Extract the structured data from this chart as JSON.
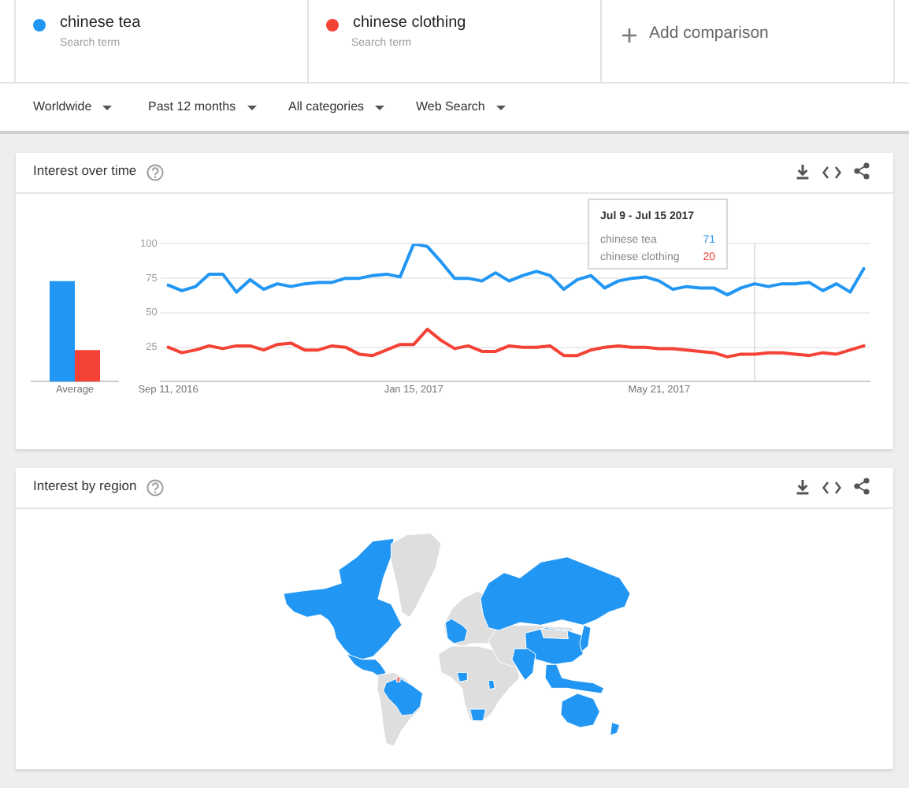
{
  "chart_data": [
    {
      "type": "other",
      "annotations": [
        "Search term",
        "Search term",
        "Add comparison",
        "Worldwide",
        "Past 12 months",
        "All categories",
        "Web Search"
      ]
    },
    {
      "type": "bar",
      "title": "Interest over time",
      "categories": [
        "Average"
      ],
      "series": [
        {
          "color": "#2196f3",
          "values": [
            73
          ]
        },
        {
          "color": "#f44336",
          "values": [
            23
          ]
        }
      ],
      "ylim": [
        0,
        100
      ],
      "tick_labels": "x"
    },
    {
      "type": "line",
      "x": [
        "2016-09-11",
        "2016-09-18",
        "2016-09-25",
        "2016-10-02",
        "2016-10-09",
        "2016-10-16",
        "2016-10-23",
        "2016-10-30",
        "2016-11-06",
        "2016-11-13",
        "2016-11-20",
        "2016-11-27",
        "2016-12-04",
        "2016-12-11",
        "2016-12-18",
        "2016-12-25",
        "2017-01-01",
        "2017-01-08",
        "2017-01-15",
        "2017-01-22",
        "2017-01-29",
        "2017-02-05",
        "2017-02-12",
        "2017-02-19",
        "2017-02-26",
        "2017-03-05",
        "2017-03-12",
        "2017-03-19",
        "2017-03-26",
        "2017-04-02",
        "2017-04-09",
        "2017-04-16",
        "2017-04-23",
        "2017-04-30",
        "2017-05-07",
        "2017-05-14",
        "2017-05-21",
        "2017-05-28",
        "2017-06-04",
        "2017-06-11",
        "2017-06-18",
        "2017-06-25",
        "2017-07-02",
        "2017-07-09",
        "2017-07-16",
        "2017-07-23",
        "2017-07-30",
        "2017-08-06",
        "2017-08-13",
        "2017-08-20",
        "2017-08-27",
        "2017-09-03"
      ],
      "series": [
        {
          "name": "chinese tea",
          "color": "#2196f3",
          "values": [
            70,
            66,
            69,
            78,
            78,
            65,
            74,
            67,
            71,
            69,
            71,
            72,
            72,
            75,
            75,
            77,
            78,
            76,
            100,
            98,
            87,
            75,
            75,
            73,
            79,
            73,
            77,
            80,
            77,
            67,
            74,
            77,
            68,
            73,
            75,
            76,
            73,
            67,
            69,
            68,
            68,
            63,
            68,
            71,
            69,
            71,
            71,
            72,
            66,
            71,
            65,
            82
          ]
        },
        {
          "name": "chinese clothing",
          "color": "#f44336",
          "values": [
            25,
            21,
            23,
            26,
            24,
            26,
            26,
            23,
            27,
            28,
            23,
            23,
            26,
            25,
            20,
            19,
            23,
            27,
            27,
            38,
            30,
            24,
            26,
            22,
            22,
            26,
            25,
            25,
            26,
            19,
            19,
            23,
            25,
            26,
            25,
            25,
            24,
            24,
            23,
            22,
            21,
            18,
            20,
            20,
            21,
            21,
            20,
            19,
            21,
            20,
            23,
            26
          ]
        }
      ],
      "xlim": [
        "2016-09-07",
        "2017-09-06"
      ],
      "xticks": [
        {
          "value": "2016-09-11",
          "label": "Sep 11, 2016"
        },
        {
          "value": "2017-01-15",
          "label": "Jan 15, 2017"
        },
        {
          "value": "2017-05-21",
          "label": "May 21, 2017"
        }
      ],
      "ylim": [
        0,
        100
      ],
      "yticks": [
        25,
        50,
        75,
        100
      ],
      "grid": "y",
      "legend": "top",
      "line_style": "solid",
      "ref_lines": [
        {
          "axis": "x",
          "value": "2017-07-09",
          "color": "#e0e0e0"
        }
      ],
      "annotations": [
        "Jul 9 - Jul 15 2017",
        "71",
        "20"
      ]
    },
    {
      "type": "other",
      "title": "Interest by region"
    }
  ]
}
